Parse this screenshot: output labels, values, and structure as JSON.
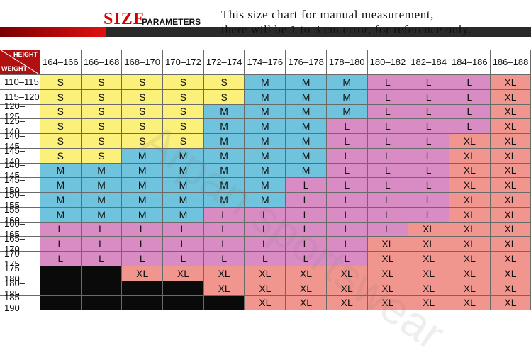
{
  "header": {
    "logo_text": "SIZE",
    "subtitle": "PARAMETERS",
    "note_line1": "This size chart for manual measurement,",
    "note_line2": "there will be 1 to 3 cm error, for reference only."
  },
  "table": {
    "corner_height_label": "HEIGHT",
    "corner_weight_label": "WEIGHT",
    "heights": [
      "164–166",
      "166–168",
      "168–170",
      "170–172",
      "172–174",
      "174–176",
      "176–178",
      "178–180",
      "180–182",
      "182–184",
      "184–186",
      "186–188"
    ],
    "weights": [
      "110–115",
      "115–120",
      "120–125",
      "125–140",
      "140–145",
      "145–140",
      "140–145",
      "145–150",
      "150–155",
      "155–160",
      "160–165",
      "165–170",
      "170–175",
      "175–180",
      "180–185",
      "185–190"
    ],
    "rows": [
      [
        "S",
        "S",
        "S",
        "S",
        "S",
        "M",
        "M",
        "M",
        "L",
        "L",
        "L",
        "XL"
      ],
      [
        "S",
        "S",
        "S",
        "S",
        "S",
        "M",
        "M",
        "M",
        "L",
        "L",
        "L",
        "XL"
      ],
      [
        "S",
        "S",
        "S",
        "S",
        "M",
        "M",
        "M",
        "M",
        "L",
        "L",
        "L",
        "XL"
      ],
      [
        "S",
        "S",
        "S",
        "S",
        "M",
        "M",
        "M",
        "L",
        "L",
        "L",
        "L",
        "XL"
      ],
      [
        "S",
        "S",
        "S",
        "S",
        "M",
        "M",
        "M",
        "L",
        "L",
        "L",
        "XL",
        "XL"
      ],
      [
        "S",
        "S",
        "M",
        "M",
        "M",
        "M",
        "M",
        "L",
        "L",
        "L",
        "XL",
        "XL"
      ],
      [
        "M",
        "M",
        "M",
        "M",
        "M",
        "M",
        "M",
        "L",
        "L",
        "L",
        "XL",
        "XL"
      ],
      [
        "M",
        "M",
        "M",
        "M",
        "M",
        "M",
        "L",
        "L",
        "L",
        "L",
        "XL",
        "XL"
      ],
      [
        "M",
        "M",
        "M",
        "M",
        "M",
        "M",
        "L",
        "L",
        "L",
        "L",
        "XL",
        "XL"
      ],
      [
        "M",
        "M",
        "M",
        "M",
        "L",
        "L",
        "L",
        "L",
        "L",
        "L",
        "XL",
        "XL"
      ],
      [
        "L",
        "L",
        "L",
        "L",
        "L",
        "L",
        "L",
        "L",
        "L",
        "XL",
        "XL",
        "XL"
      ],
      [
        "L",
        "L",
        "L",
        "L",
        "L",
        "L",
        "L",
        "L",
        "XL",
        "XL",
        "XL",
        "XL"
      ],
      [
        "L",
        "L",
        "L",
        "L",
        "L",
        "L",
        "L",
        "L",
        "XL",
        "XL",
        "XL",
        "XL"
      ],
      [
        "",
        "",
        "XL",
        "XL",
        "XL",
        "XL",
        "XL",
        "XL",
        "XL",
        "XL",
        "XL",
        "XL"
      ],
      [
        "",
        "",
        "",
        "",
        "XL",
        "XL",
        "XL",
        "XL",
        "XL",
        "XL",
        "XL",
        "XL"
      ],
      [
        "",
        "",
        "",
        "",
        "",
        "XL",
        "XL",
        "XL",
        "XL",
        "XL",
        "XL",
        "XL"
      ]
    ],
    "colors": {
      "S": "#fbf17a",
      "M": "#6fc3dc",
      "L": "#d98bc4",
      "XL": "#f0968e",
      "empty": "#0a0a0a",
      "corner": "#b01010",
      "header_red": "#d40000"
    }
  },
  "watermark_text": "Arpan sportswear"
}
